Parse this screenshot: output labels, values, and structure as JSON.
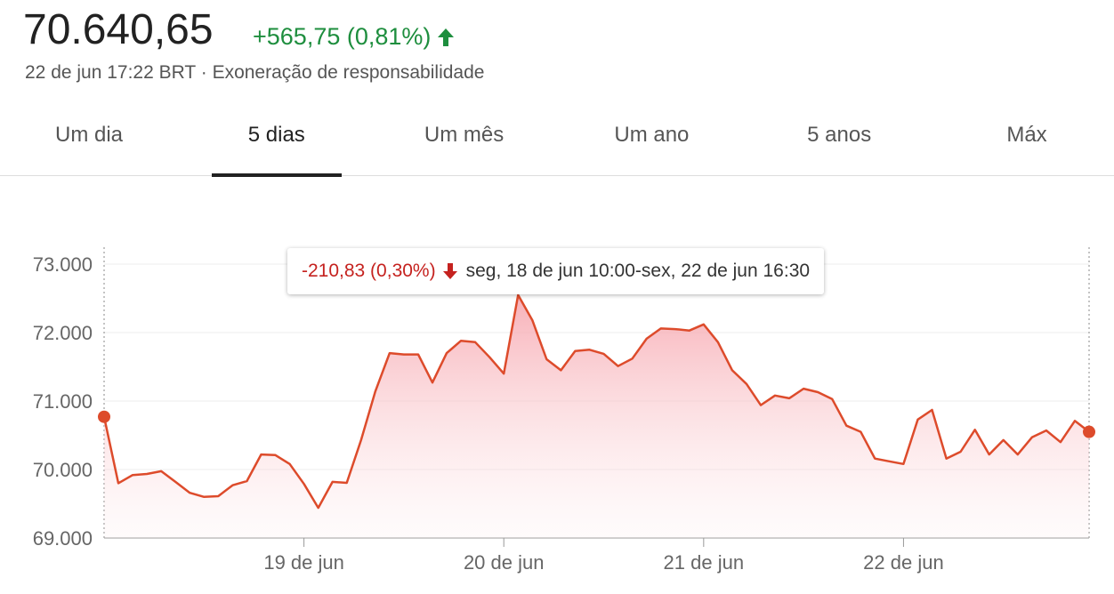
{
  "header": {
    "price": "70.640,65",
    "change": "+565,75 (0,81%)",
    "timestamp": "22 de jun 17:22 BRT",
    "separator": "·",
    "disclaimer": "Exoneração de responsabilidade"
  },
  "tabs": {
    "items": [
      "Um dia",
      "5 dias",
      "Um mês",
      "Um ano",
      "5 anos",
      "Máx"
    ],
    "selected": 1
  },
  "chart_data": {
    "type": "line",
    "color": "#dd4b2b",
    "values": [
      70770,
      69800,
      69920,
      69935,
      69975,
      69820,
      69660,
      69600,
      69610,
      69770,
      69830,
      70220,
      70210,
      70080,
      69790,
      69440,
      69820,
      69805,
      70430,
      71140,
      71700,
      71680,
      71680,
      71270,
      71700,
      71880,
      71860,
      71640,
      71400,
      72550,
      72180,
      71610,
      71450,
      71730,
      71750,
      71690,
      71510,
      71620,
      71910,
      72060,
      72050,
      72030,
      72120,
      71860,
      71450,
      71250,
      70940,
      71080,
      71040,
      71180,
      71130,
      71030,
      70640,
      70550,
      70160,
      70120,
      70080,
      70730,
      70870,
      70160,
      70260,
      70580,
      70220,
      70430,
      70220,
      70470,
      70570,
      70400,
      70710,
      70550
    ],
    "xlim": [
      0,
      69
    ],
    "xticks": [
      {
        "value": 14,
        "label": "19 de jun"
      },
      {
        "value": 28,
        "label": "20 de jun"
      },
      {
        "value": 42,
        "label": "21 de jun"
      },
      {
        "value": 56,
        "label": "22 de jun"
      }
    ],
    "ylim": [
      69000,
      73000
    ],
    "yticks": [
      {
        "value": 69000,
        "label": "69.000"
      },
      {
        "value": 70000,
        "label": "70.000"
      },
      {
        "value": 71000,
        "label": "71.000"
      },
      {
        "value": 72000,
        "label": "72.000"
      },
      {
        "value": 73000,
        "label": "73.000"
      }
    ],
    "grid": true,
    "tooltip": {
      "change": "-210,83 (0,30%)",
      "range": "seg, 18 de jun 10:00-sex, 22 de jun 16:30"
    }
  }
}
